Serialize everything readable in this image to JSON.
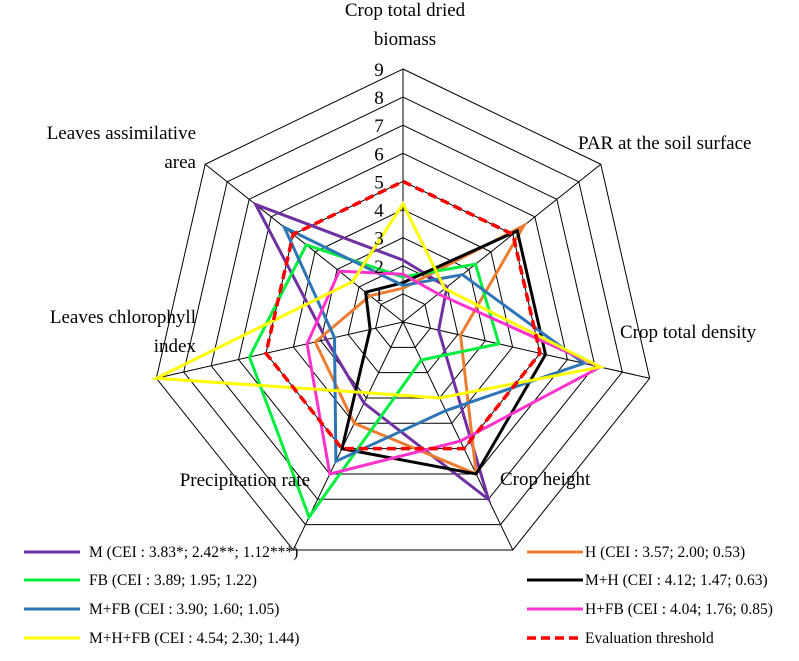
{
  "chart_data": {
    "type": "radar",
    "title": "",
    "axes": [
      "Crop total dried biomass",
      "PAR at the soil surface",
      "Crop total density",
      "Crop height",
      "Precipitation rate",
      "Leaves chlorophyll index",
      "Leaves assimilative area"
    ],
    "axis_label_lines": [
      [
        "Crop total dried",
        "biomass"
      ],
      [
        "PAR at the soil surface"
      ],
      [
        "Crop total density"
      ],
      [
        "Crop height"
      ],
      [
        "Precipitation rate"
      ],
      [
        "Leaves chlorophyll",
        "index"
      ],
      [
        "Leaves assimilative",
        "area"
      ]
    ],
    "scale": {
      "min": 0,
      "max": 9,
      "step": 1
    },
    "tick_labels": [
      "1",
      "2",
      "3",
      "4",
      "5",
      "6",
      "7",
      "8",
      "9"
    ],
    "grid": true,
    "legend_position": "bottom",
    "series": [
      {
        "name": "M (CEI : 3.83*; 2.42**; 1.12***)",
        "color": "#7030a0",
        "dashed": false,
        "values": [
          2.2,
          2.0,
          1.3,
          7.0,
          3.2,
          2.8,
          6.7
        ]
      },
      {
        "name": "H (CEI : 3.57; 2.00; 0.53)",
        "color": "#ed7d31",
        "dashed": false,
        "values": [
          1.2,
          5.5,
          2.1,
          6.0,
          4.0,
          3.2,
          1.5
        ]
      },
      {
        "name": "FB (CEI : 3.89; 1.95; 1.22)",
        "color": "#00ee3f",
        "dashed": false,
        "values": [
          1.6,
          3.3,
          3.5,
          1.5,
          7.7,
          5.6,
          4.4
        ]
      },
      {
        "name": "M+H (CEI : 4.12; 1.47; 0.63)",
        "color": "#000000",
        "dashed": false,
        "values": [
          1.4,
          5.2,
          5.2,
          6.0,
          5.0,
          1.2,
          1.7
        ]
      },
      {
        "name": "M+FB (CEI : 3.90; 1.60; 1.05)",
        "color": "#2e75b6",
        "dashed": false,
        "values": [
          1.3,
          2.7,
          6.6,
          3.5,
          5.5,
          2.5,
          5.4
        ]
      },
      {
        "name": "H+FB (CEI : 4.04; 1.76; 0.85)",
        "color": "#ff33cc",
        "dashed": false,
        "values": [
          1.7,
          1.6,
          7.2,
          4.7,
          6.0,
          3.5,
          2.9
        ]
      },
      {
        "name": "M+H+FB (CEI : 4.54; 2.30; 1.44)",
        "color": "#ffff00",
        "dashed": false,
        "values": [
          4.2,
          1.9,
          7.2,
          3.0,
          2.8,
          9.0,
          2.3
        ]
      },
      {
        "name": "Evaluation threshold",
        "color": "#ff0000",
        "dashed": true,
        "values": [
          5,
          5,
          5,
          5,
          5,
          5,
          5
        ]
      }
    ]
  }
}
